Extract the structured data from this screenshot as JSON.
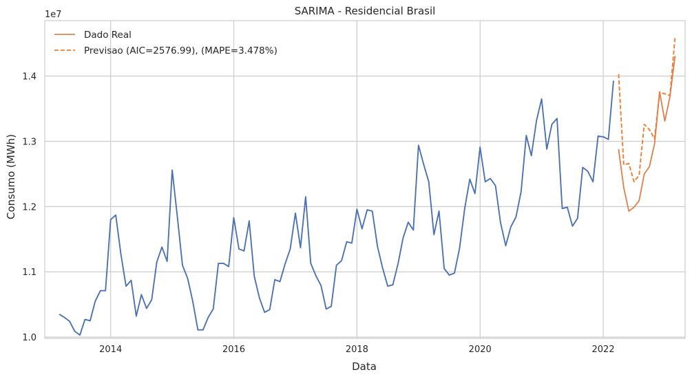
{
  "chart_data": {
    "type": "line",
    "title": "SARIMA - Residencial Brasil",
    "xlabel": "Data",
    "ylabel": "Consumo (MWh)",
    "y_scale_label": "1e7",
    "y_scale_factor": 10000000,
    "xlim": [
      2012.93,
      2023.33
    ],
    "ylim": [
      9980000,
      14850000
    ],
    "x_ticks": [
      2014,
      2016,
      2018,
      2020,
      2022
    ],
    "x_tick_labels": [
      "2014",
      "2016",
      "2018",
      "2020",
      "2022"
    ],
    "y_ticks": [
      10000000,
      11000000,
      12000000,
      13000000,
      14000000
    ],
    "y_tick_labels": [
      "1.0",
      "1.1",
      "1.2",
      "1.3",
      "1.4"
    ],
    "grid": true,
    "legend_position": "top-left",
    "colors": {
      "historical": "#4c72b0",
      "real": "#dd8452",
      "forecast": "#ed7d31",
      "grid": "#cccccc",
      "spine": "#cccccc"
    },
    "series": [
      {
        "x": [
          "2013-03",
          "2013-04",
          "2013-05",
          "2013-06",
          "2013-07",
          "2013-08",
          "2013-09",
          "2013-10",
          "2013-11",
          "2013-12",
          "2014-01",
          "2014-02",
          "2014-03",
          "2014-04",
          "2014-05",
          "2014-06",
          "2014-07",
          "2014-08",
          "2014-09",
          "2014-10",
          "2014-11",
          "2014-12",
          "2015-01",
          "2015-02",
          "2015-03",
          "2015-04",
          "2015-05",
          "2015-06",
          "2015-07",
          "2015-08",
          "2015-09",
          "2015-10",
          "2015-11",
          "2015-12",
          "2016-01",
          "2016-02",
          "2016-03",
          "2016-04",
          "2016-05",
          "2016-06",
          "2016-07",
          "2016-08",
          "2016-09",
          "2016-10",
          "2016-11",
          "2016-12",
          "2017-01",
          "2017-02",
          "2017-03",
          "2017-04",
          "2017-05",
          "2017-06",
          "2017-07",
          "2017-08",
          "2017-09",
          "2017-10",
          "2017-11",
          "2017-12",
          "2018-01",
          "2018-02",
          "2018-03",
          "2018-04",
          "2018-05",
          "2018-06",
          "2018-07",
          "2018-08",
          "2018-09",
          "2018-10",
          "2018-11",
          "2018-12",
          "2019-01",
          "2019-02",
          "2019-03",
          "2019-04",
          "2019-05",
          "2019-06",
          "2019-07",
          "2019-08",
          "2019-09",
          "2019-10",
          "2019-11",
          "2019-12",
          "2020-01",
          "2020-02",
          "2020-03",
          "2020-04",
          "2020-05",
          "2020-06",
          "2020-07",
          "2020-08",
          "2020-09",
          "2020-10",
          "2020-11",
          "2020-12",
          "2021-01",
          "2021-02",
          "2021-03",
          "2021-04",
          "2021-05",
          "2021-06",
          "2021-07",
          "2021-08",
          "2021-09",
          "2021-10",
          "2021-11",
          "2021-12",
          "2022-01",
          "2022-02",
          "2022-03"
        ],
        "values": [
          10350000,
          10300000,
          10240000,
          10090000,
          10030000,
          10270000,
          10250000,
          10550000,
          10710000,
          10710000,
          11800000,
          11870000,
          11270000,
          10780000,
          10870000,
          10320000,
          10650000,
          10440000,
          10570000,
          11150000,
          11380000,
          11160000,
          12560000,
          11840000,
          11100000,
          10900000,
          10550000,
          10110000,
          10110000,
          10300000,
          10430000,
          11130000,
          11130000,
          11080000,
          11830000,
          11350000,
          11320000,
          11780000,
          10930000,
          10600000,
          10380000,
          10420000,
          10880000,
          10850000,
          11120000,
          11350000,
          11900000,
          11370000,
          12150000,
          11130000,
          10940000,
          10790000,
          10430000,
          10470000,
          11100000,
          11170000,
          11460000,
          11440000,
          11960000,
          11660000,
          11950000,
          11930000,
          11390000,
          11060000,
          10780000,
          10800000,
          11120000,
          11520000,
          11760000,
          11640000,
          12940000,
          12650000,
          12380000,
          11570000,
          11930000,
          11050000,
          10950000,
          10980000,
          11360000,
          11970000,
          12420000,
          12200000,
          12910000,
          12380000,
          12430000,
          12320000,
          11750000,
          11400000,
          11690000,
          11840000,
          12230000,
          13090000,
          12780000,
          13320000,
          13650000,
          12880000,
          13260000,
          13350000,
          11970000,
          11990000,
          11700000,
          11820000,
          12600000,
          12540000,
          12380000,
          13080000,
          13070000,
          13030000,
          13930000
        ]
      },
      {
        "name": "Dado Real",
        "x": [
          "2022-04",
          "2022-05",
          "2022-06",
          "2022-07",
          "2022-08",
          "2022-09",
          "2022-10",
          "2022-11",
          "2022-12",
          "2023-01",
          "2023-02",
          "2023-03"
        ],
        "values": [
          12880000,
          12290000,
          11930000,
          11990000,
          12090000,
          12500000,
          12610000,
          12960000,
          13760000,
          13310000,
          13680000,
          14310000
        ]
      },
      {
        "name": "Previsao (AIC=2576.99), (MAPE=3.478%)",
        "x": [
          "2022-04",
          "2022-05",
          "2022-06",
          "2022-07",
          "2022-08",
          "2022-09",
          "2022-10",
          "2022-11",
          "2022-12",
          "2023-01",
          "2023-02",
          "2023-03"
        ],
        "values": [
          14030000,
          12640000,
          12660000,
          12380000,
          12480000,
          13260000,
          13180000,
          13040000,
          13750000,
          13730000,
          13700000,
          14600000
        ]
      }
    ]
  }
}
